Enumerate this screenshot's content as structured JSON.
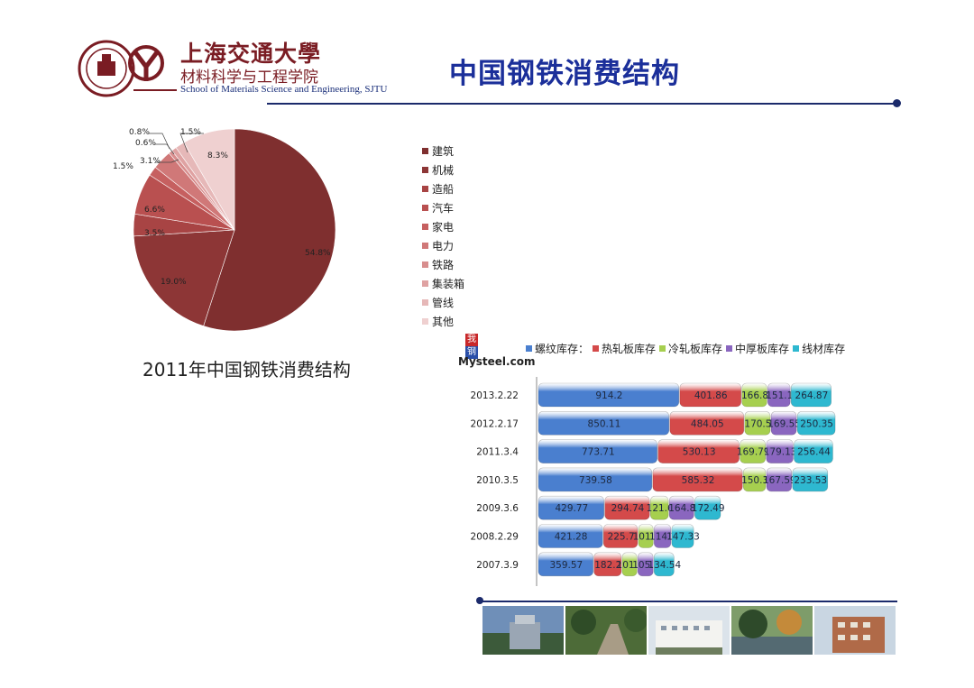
{
  "header": {
    "school_cn": "上海交通大學",
    "college_cn": "材料科学与工程学院",
    "college_en": "School of Materials Science and Engineering, SJTU"
  },
  "slide_title": "中国钢铁消费结构",
  "colors": {
    "title_blue": "#1b2f9a",
    "rule_navy": "#1b2a6b",
    "sjtu_red": "#7a1c23"
  },
  "pie_caption": "2011年中国钢铁消费结构",
  "photos": [
    "campus-building",
    "tree-path",
    "white-building",
    "lake-trees",
    "brick-building"
  ],
  "chart_data": [
    {
      "type": "pie",
      "title": "",
      "legend_position": "right",
      "slices": [
        {
          "label": "建筑",
          "value": 54.8,
          "display": "54.8%",
          "color": "#7f2f2f"
        },
        {
          "label": "机械",
          "value": 19.0,
          "display": "19.0%",
          "color": "#8d3636"
        },
        {
          "label": "造船",
          "value": 3.5,
          "display": "3.5%",
          "color": "#a84444"
        },
        {
          "label": "汽车",
          "value": 6.6,
          "display": "6.6%",
          "color": "#b95050"
        },
        {
          "label": "家电",
          "value": 1.5,
          "display": "1.5%",
          "color": "#c66060"
        },
        {
          "label": "电力",
          "value": 3.1,
          "display": "3.1%",
          "color": "#d07878"
        },
        {
          "label": "铁路",
          "value": 0.6,
          "display": "0.6%",
          "color": "#d88e8e"
        },
        {
          "label": "集装箱",
          "value": 0.8,
          "display": "0.8%",
          "color": "#dfa2a2"
        },
        {
          "label": "管线",
          "value": 1.5,
          "display": "1.5%",
          "color": "#e6b8b8"
        },
        {
          "label": "其他",
          "value": 8.3,
          "display": "8.3%",
          "color": "#efd0d0"
        }
      ]
    },
    {
      "type": "bar",
      "orientation": "horizontal",
      "stacked": true,
      "source_logo": {
        "box1": "我的",
        "box2": "钢铁",
        "word": "Mysteel.com"
      },
      "legend_position": "top",
      "categories": [
        "2013.2.22",
        "2012.2.17",
        "2011.3.4",
        "2010.3.5",
        "2009.3.6",
        "2008.2.29",
        "2007.3.9"
      ],
      "series": [
        {
          "name": "螺纹库存：",
          "color": "#4a7fcf",
          "values": [
            914.2,
            850.11,
            773.71,
            739.58,
            429.77,
            421.28,
            359.57
          ],
          "labels": [
            "914.2",
            "850.11",
            "773.71",
            "739.58",
            "429.77",
            "421.28",
            "359.57"
          ]
        },
        {
          "name": "热轧板库存",
          "color": "#d44a4a",
          "values": [
            401.86,
            484.05,
            530.13,
            585.32,
            294.74,
            225.7,
            182.2
          ],
          "labels": [
            "401.86",
            "484.05",
            "530.13",
            "585.32",
            "294.74",
            "225.7",
            "182.2"
          ]
        },
        {
          "name": "冷轧板库存",
          "color": "#a6cf4f",
          "values": [
            166.8,
            170.5,
            169.79,
            150.3,
            121.6,
            101.1,
            101.0
          ],
          "labels": [
            "166.8",
            "170.5",
            "169.79",
            "150.3",
            "121.6",
            "101.1",
            "101.0"
          ]
        },
        {
          "name": "中厚板库存",
          "color": "#8a66bf",
          "values": [
            151.1,
            169.55,
            179.13,
            167.59,
            164.8,
            114.1,
            105.1
          ],
          "labels": [
            "151.1",
            "169.55",
            "179.13",
            "167.59",
            "164.8",
            "114.1",
            "105.1"
          ]
        },
        {
          "name": "线材库存",
          "color": "#2eb8d0",
          "values": [
            264.87,
            250.35,
            256.44,
            233.53,
            172.49,
            147.33,
            134.54
          ],
          "labels": [
            "264.87",
            "250.35",
            "256.44",
            "233.53",
            "172.49",
            "147.33",
            "134.54"
          ]
        }
      ]
    }
  ]
}
